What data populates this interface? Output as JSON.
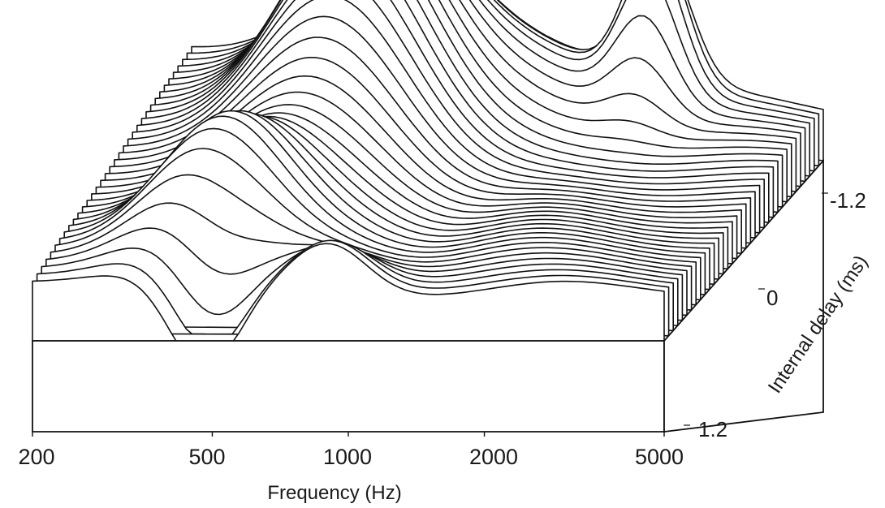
{
  "chart_data": {
    "type": "surface",
    "title": "",
    "xlabel": "Frequency (Hz)",
    "ylabel": "Internal delay (ms)",
    "x_scale": "log",
    "x_ticks": [
      "200",
      "500",
      "1000",
      "2000",
      "5000"
    ],
    "x_range": [
      200,
      5000
    ],
    "y_ticks": [
      "-1.2",
      "0",
      "1.2"
    ],
    "y_range": [
      -1.2,
      1.2
    ],
    "num_traces": 36,
    "line_color": "#111111",
    "features": [
      {
        "frequency": 900,
        "delay": -0.6,
        "kind": "broad peak"
      },
      {
        "frequency": 700,
        "delay": 0.0,
        "kind": "ridge"
      },
      {
        "frequency": 700,
        "delay": 1.2,
        "kind": "trough"
      },
      {
        "frequency": 2300,
        "delay": -1.1,
        "kind": "sharp peak"
      }
    ],
    "grid": false,
    "legend": "none"
  }
}
